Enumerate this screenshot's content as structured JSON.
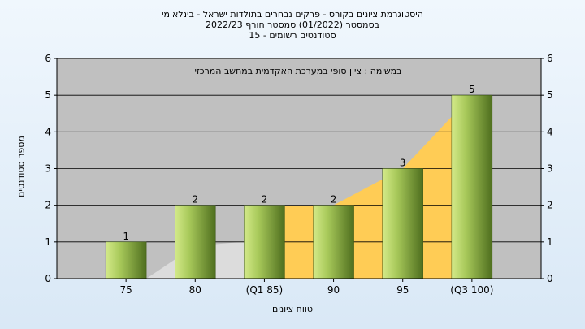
{
  "header": {
    "line1": "היסטוגרמת ציונים בקורס - פרקים נבחרים בתולדות ישראל - בינלאומי",
    "line2": "בסמסטר  (01/2022)  סמסטר חורף  2022/23",
    "line3": "סטודנטים רשומים - 15"
  },
  "chart_data": {
    "type": "bar",
    "categories": [
      "75",
      "80",
      "(Q1 85)",
      "90",
      "95",
      "(Q3 100)"
    ],
    "values": [
      1,
      2,
      2,
      2,
      3,
      5
    ],
    "data_labels": [
      "1",
      "2",
      "2",
      "2",
      "3",
      "5"
    ],
    "annotation": "במשימה : ציון סופי במערכת האקדמית במחשב המרכזי",
    "xlabel": "טווח ציונים",
    "ylabel": "מספר סטודנטים",
    "ylim": [
      0,
      6
    ],
    "yticks": [
      "0",
      "1",
      "2",
      "3",
      "4",
      "5",
      "6"
    ],
    "grid": true,
    "colors": {
      "plot_bg": "#c0c0c0",
      "area_gray": "#dcdcdc",
      "area_yellow": "#ffcc55",
      "bar_light": "#d4ea8a",
      "bar_dark": "#4e6e1e",
      "grid": "#000000"
    }
  }
}
